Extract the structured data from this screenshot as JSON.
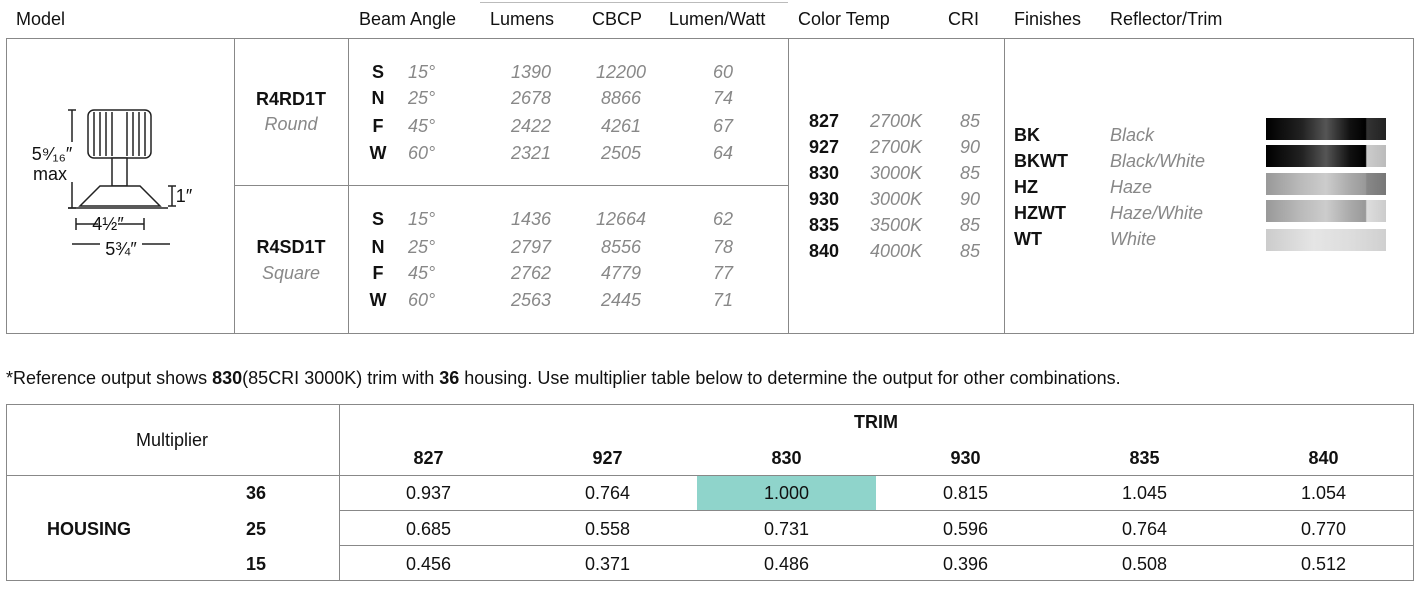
{
  "header": {
    "columns": [
      "Model",
      "Beam Angle",
      "Lumens",
      "CBCP",
      "Lumen/Watt",
      "Color Temp",
      "CRI",
      "Finishes",
      "Reflector/Trim"
    ]
  },
  "dimensions": {
    "height": "5⁹⁄₁₆″",
    "height_note": "max",
    "trim_height": "1″",
    "inner_width": "4½″",
    "outer_width": "5¾″"
  },
  "models": [
    {
      "code": "R4RD1T",
      "shape": "Round",
      "beams": [
        {
          "letter": "S",
          "angle": "15°",
          "lumens": "1390",
          "cbcp": "12200",
          "lpw": "60"
        },
        {
          "letter": "N",
          "angle": "25°",
          "lumens": "2678",
          "cbcp": "8866",
          "lpw": "74"
        },
        {
          "letter": "F",
          "angle": "45°",
          "lumens": "2422",
          "cbcp": "4261",
          "lpw": "67"
        },
        {
          "letter": "W",
          "angle": "60°",
          "lumens": "2321",
          "cbcp": "2505",
          "lpw": "64"
        }
      ]
    },
    {
      "code": "R4SD1T",
      "shape": "Square",
      "beams": [
        {
          "letter": "S",
          "angle": "15°",
          "lumens": "1436",
          "cbcp": "12664",
          "lpw": "62"
        },
        {
          "letter": "N",
          "angle": "25°",
          "lumens": "2797",
          "cbcp": "8556",
          "lpw": "78"
        },
        {
          "letter": "F",
          "angle": "45°",
          "lumens": "2762",
          "cbcp": "4779",
          "lpw": "77"
        },
        {
          "letter": "W",
          "angle": "60°",
          "lumens": "2563",
          "cbcp": "2445",
          "lpw": "71"
        }
      ]
    }
  ],
  "color_temps": [
    {
      "code": "827",
      "kelvin": "2700K",
      "cri": "85"
    },
    {
      "code": "927",
      "kelvin": "2700K",
      "cri": "90"
    },
    {
      "code": "830",
      "kelvin": "3000K",
      "cri": "85"
    },
    {
      "code": "930",
      "kelvin": "3000K",
      "cri": "90"
    },
    {
      "code": "835",
      "kelvin": "3500K",
      "cri": "85"
    },
    {
      "code": "840",
      "kelvin": "4000K",
      "cri": "85"
    }
  ],
  "finishes": [
    {
      "code": "BK",
      "name": "Black"
    },
    {
      "code": "BKWT",
      "name": "Black/White"
    },
    {
      "code": "HZ",
      "name": "Haze"
    },
    {
      "code": "HZWT",
      "name": "Haze/White"
    },
    {
      "code": "WT",
      "name": "White"
    }
  ],
  "note": {
    "parts": [
      "*Reference output shows ",
      "830",
      "(85CRI 3000K) trim with ",
      "36",
      " housing. Use multiplier table below to determine the output for other combinations."
    ]
  },
  "multiplier": {
    "label": "Multiplier",
    "trim_label": "TRIM",
    "housing_label": "HOUSING",
    "trims": [
      "827",
      "927",
      "830",
      "930",
      "835",
      "840"
    ],
    "rows": [
      {
        "housing": "36",
        "values": [
          "0.937",
          "0.764",
          "1.000",
          "0.815",
          "1.045",
          "1.054"
        ]
      },
      {
        "housing": "25",
        "values": [
          "0.685",
          "0.558",
          "0.731",
          "0.596",
          "0.764",
          "0.770"
        ]
      },
      {
        "housing": "15",
        "values": [
          "0.456",
          "0.371",
          "0.486",
          "0.396",
          "0.508",
          "0.512"
        ]
      }
    ]
  }
}
